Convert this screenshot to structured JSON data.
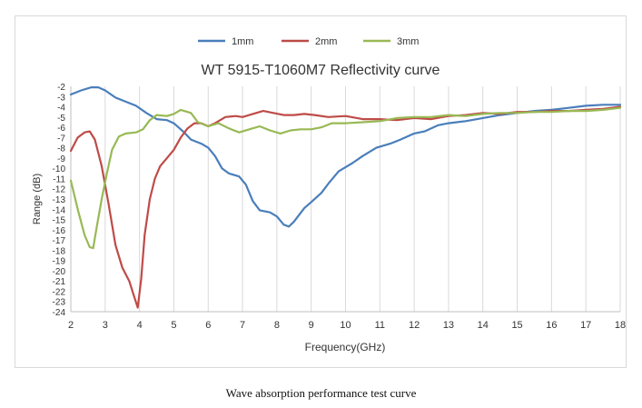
{
  "caption": "Wave absorption performance test curve",
  "chart_data": {
    "type": "line",
    "title": "WT 5915-T1060M7 Reflectivity curve",
    "xlabel": "Frequency(GHz)",
    "ylabel": "Range (dB)",
    "xlim": [
      2,
      18
    ],
    "ylim": [
      -24,
      -2
    ],
    "x_ticks": [
      2,
      3,
      4,
      5,
      6,
      7,
      8,
      9,
      10,
      11,
      12,
      13,
      14,
      15,
      16,
      17,
      18
    ],
    "y_ticks": [
      -2,
      -3,
      -4,
      -5,
      -6,
      -7,
      -8,
      -9,
      -10,
      -11,
      -12,
      -13,
      -14,
      -15,
      -16,
      -17,
      -18,
      -19,
      -20,
      -21,
      -22,
      -23,
      -24
    ],
    "grid": "vertical",
    "legend_position": "top-center",
    "series": [
      {
        "name": "1mm",
        "color": "#4a7ebb",
        "points": [
          [
            2,
            -2.8
          ],
          [
            2.3,
            -2.4
          ],
          [
            2.6,
            -2.1
          ],
          [
            2.8,
            -2.1
          ],
          [
            3.0,
            -2.4
          ],
          [
            3.3,
            -3.1
          ],
          [
            3.6,
            -3.5
          ],
          [
            3.9,
            -3.9
          ],
          [
            4.2,
            -4.6
          ],
          [
            4.5,
            -5.2
          ],
          [
            4.8,
            -5.3
          ],
          [
            5.0,
            -5.6
          ],
          [
            5.3,
            -6.5
          ],
          [
            5.5,
            -7.2
          ],
          [
            5.8,
            -7.6
          ],
          [
            6.0,
            -8.0
          ],
          [
            6.2,
            -8.8
          ],
          [
            6.4,
            -10.0
          ],
          [
            6.6,
            -10.5
          ],
          [
            6.9,
            -10.8
          ],
          [
            7.1,
            -11.6
          ],
          [
            7.3,
            -13.2
          ],
          [
            7.5,
            -14.1
          ],
          [
            7.8,
            -14.3
          ],
          [
            8.0,
            -14.7
          ],
          [
            8.2,
            -15.5
          ],
          [
            8.35,
            -15.7
          ],
          [
            8.5,
            -15.2
          ],
          [
            8.8,
            -13.9
          ],
          [
            9.0,
            -13.3
          ],
          [
            9.3,
            -12.4
          ],
          [
            9.5,
            -11.5
          ],
          [
            9.8,
            -10.3
          ],
          [
            10.2,
            -9.5
          ],
          [
            10.5,
            -8.8
          ],
          [
            10.9,
            -8.0
          ],
          [
            11.3,
            -7.6
          ],
          [
            11.6,
            -7.2
          ],
          [
            12.0,
            -6.6
          ],
          [
            12.3,
            -6.4
          ],
          [
            12.7,
            -5.8
          ],
          [
            13.0,
            -5.6
          ],
          [
            13.5,
            -5.4
          ],
          [
            14.0,
            -5.1
          ],
          [
            14.5,
            -4.8
          ],
          [
            15.0,
            -4.6
          ],
          [
            15.5,
            -4.4
          ],
          [
            16.0,
            -4.3
          ],
          [
            16.5,
            -4.1
          ],
          [
            17.0,
            -3.9
          ],
          [
            17.5,
            -3.8
          ],
          [
            18.0,
            -3.8
          ]
        ]
      },
      {
        "name": "2mm",
        "color": "#be4b48",
        "points": [
          [
            2,
            -8.3
          ],
          [
            2.2,
            -7.0
          ],
          [
            2.4,
            -6.5
          ],
          [
            2.55,
            -6.4
          ],
          [
            2.7,
            -7.2
          ],
          [
            2.9,
            -9.8
          ],
          [
            3.1,
            -13.5
          ],
          [
            3.3,
            -17.5
          ],
          [
            3.5,
            -19.7
          ],
          [
            3.7,
            -21.0
          ],
          [
            3.85,
            -22.6
          ],
          [
            3.95,
            -23.6
          ],
          [
            4.05,
            -20.8
          ],
          [
            4.15,
            -16.5
          ],
          [
            4.3,
            -13.0
          ],
          [
            4.45,
            -11.0
          ],
          [
            4.6,
            -9.8
          ],
          [
            4.8,
            -9.0
          ],
          [
            5.0,
            -8.2
          ],
          [
            5.2,
            -7.0
          ],
          [
            5.4,
            -6.1
          ],
          [
            5.6,
            -5.6
          ],
          [
            5.8,
            -5.6
          ],
          [
            6.0,
            -5.9
          ],
          [
            6.2,
            -5.6
          ],
          [
            6.5,
            -5.0
          ],
          [
            6.8,
            -4.9
          ],
          [
            7.0,
            -5.0
          ],
          [
            7.3,
            -4.7
          ],
          [
            7.6,
            -4.4
          ],
          [
            7.9,
            -4.6
          ],
          [
            8.2,
            -4.8
          ],
          [
            8.5,
            -4.8
          ],
          [
            8.8,
            -4.7
          ],
          [
            9.1,
            -4.8
          ],
          [
            9.5,
            -5.0
          ],
          [
            10.0,
            -4.9
          ],
          [
            10.5,
            -5.2
          ],
          [
            11.0,
            -5.2
          ],
          [
            11.5,
            -5.3
          ],
          [
            12.0,
            -5.1
          ],
          [
            12.5,
            -5.2
          ],
          [
            13.0,
            -4.9
          ],
          [
            13.5,
            -4.8
          ],
          [
            14.0,
            -4.6
          ],
          [
            14.5,
            -4.7
          ],
          [
            15.0,
            -4.5
          ],
          [
            15.5,
            -4.5
          ],
          [
            16.0,
            -4.4
          ],
          [
            16.5,
            -4.4
          ],
          [
            17.0,
            -4.3
          ],
          [
            17.5,
            -4.2
          ],
          [
            18.0,
            -4.0
          ]
        ]
      },
      {
        "name": "3mm",
        "color": "#98b954",
        "points": [
          [
            2,
            -11.2
          ],
          [
            2.2,
            -14.0
          ],
          [
            2.4,
            -16.5
          ],
          [
            2.55,
            -17.7
          ],
          [
            2.65,
            -17.8
          ],
          [
            2.75,
            -15.8
          ],
          [
            2.9,
            -13.0
          ],
          [
            3.05,
            -10.5
          ],
          [
            3.2,
            -8.2
          ],
          [
            3.4,
            -6.9
          ],
          [
            3.6,
            -6.6
          ],
          [
            3.9,
            -6.5
          ],
          [
            4.1,
            -6.2
          ],
          [
            4.3,
            -5.3
          ],
          [
            4.5,
            -4.8
          ],
          [
            4.8,
            -4.9
          ],
          [
            5.0,
            -4.7
          ],
          [
            5.2,
            -4.3
          ],
          [
            5.5,
            -4.6
          ],
          [
            5.7,
            -5.5
          ],
          [
            6.0,
            -5.9
          ],
          [
            6.3,
            -5.6
          ],
          [
            6.6,
            -6.1
          ],
          [
            6.9,
            -6.5
          ],
          [
            7.2,
            -6.2
          ],
          [
            7.5,
            -5.9
          ],
          [
            7.8,
            -6.3
          ],
          [
            8.1,
            -6.6
          ],
          [
            8.4,
            -6.3
          ],
          [
            8.7,
            -6.2
          ],
          [
            9.0,
            -6.2
          ],
          [
            9.3,
            -6.0
          ],
          [
            9.6,
            -5.6
          ],
          [
            10.0,
            -5.6
          ],
          [
            10.5,
            -5.5
          ],
          [
            11.0,
            -5.4
          ],
          [
            11.5,
            -5.1
          ],
          [
            12.0,
            -5.0
          ],
          [
            12.5,
            -5.0
          ],
          [
            13.0,
            -4.8
          ],
          [
            13.5,
            -4.9
          ],
          [
            14.0,
            -4.7
          ],
          [
            14.5,
            -4.6
          ],
          [
            15.0,
            -4.6
          ],
          [
            15.5,
            -4.5
          ],
          [
            16.0,
            -4.5
          ],
          [
            16.5,
            -4.4
          ],
          [
            17.0,
            -4.4
          ],
          [
            17.5,
            -4.3
          ],
          [
            18.0,
            -4.1
          ]
        ]
      }
    ]
  }
}
